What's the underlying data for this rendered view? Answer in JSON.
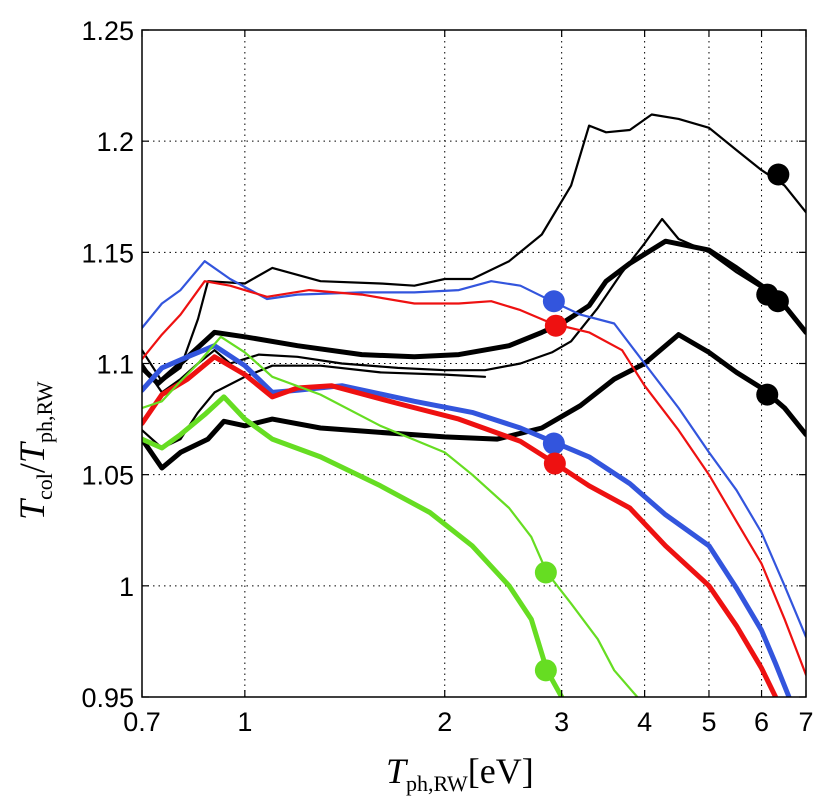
{
  "chart_data": {
    "type": "line",
    "title": "",
    "xlabel": "T_ph,RW [eV]",
    "ylabel": "T_col / T_ph,RW",
    "xlabel_parts": {
      "main": "T",
      "sub": "ph,RW",
      "unit": "[eV]"
    },
    "ylabel_parts": {
      "main": "T",
      "sub1": "col",
      "sep": "/",
      "main2": "T",
      "sub2": "ph,RW"
    },
    "xscale": "log",
    "xlim": [
      0.7,
      7
    ],
    "ylim": [
      0.95,
      1.25
    ],
    "xticks": [
      0.7,
      1,
      2,
      3,
      4,
      5,
      6,
      7
    ],
    "xtick_labels": [
      "0.7",
      "1",
      "2",
      "3",
      "4",
      "5",
      "6",
      "7"
    ],
    "yticks": [
      0.95,
      1.0,
      1.05,
      1.1,
      1.15,
      1.2,
      1.25
    ],
    "ytick_labels": [
      "0.95",
      "1",
      "1.05",
      "1.1",
      "1.15",
      "1.2",
      "1.25"
    ],
    "grid": true,
    "series": [
      {
        "name": "black-thin-top",
        "color": "#000000",
        "width": "thin",
        "points": [
          [
            0.7,
            1.106
          ],
          [
            0.75,
            1.092
          ],
          [
            0.8,
            1.098
          ],
          [
            0.85,
            1.12
          ],
          [
            0.88,
            1.137
          ],
          [
            1.0,
            1.136
          ],
          [
            1.1,
            1.143
          ],
          [
            1.3,
            1.137
          ],
          [
            1.6,
            1.136
          ],
          [
            1.8,
            1.135
          ],
          [
            2.0,
            1.138
          ],
          [
            2.2,
            1.138
          ],
          [
            2.5,
            1.146
          ],
          [
            2.8,
            1.158
          ],
          [
            3.1,
            1.18
          ],
          [
            3.3,
            1.207
          ],
          [
            3.5,
            1.204
          ],
          [
            3.8,
            1.205
          ],
          [
            4.1,
            1.212
          ],
          [
            4.5,
            1.21
          ],
          [
            5.0,
            1.206
          ],
          [
            5.5,
            1.196
          ],
          [
            6.0,
            1.187
          ],
          [
            6.5,
            1.18
          ],
          [
            7.0,
            1.168
          ]
        ],
        "marker": [
          6.36,
          1.185
        ]
      },
      {
        "name": "black-thin-mid",
        "color": "#000000",
        "width": "thin",
        "points": [
          [
            0.7,
            1.1
          ],
          [
            0.75,
            1.087
          ],
          [
            0.8,
            1.093
          ],
          [
            0.85,
            1.1
          ],
          [
            0.9,
            1.106
          ],
          [
            0.95,
            1.1
          ],
          [
            1.05,
            1.104
          ],
          [
            1.2,
            1.103
          ],
          [
            1.4,
            1.1
          ],
          [
            1.7,
            1.098
          ],
          [
            2.0,
            1.097
          ],
          [
            2.3,
            1.097
          ],
          [
            2.6,
            1.1
          ],
          [
            2.9,
            1.105
          ],
          [
            3.1,
            1.11
          ],
          [
            3.4,
            1.125
          ],
          [
            3.7,
            1.141
          ],
          [
            4.0,
            1.154
          ],
          [
            4.25,
            1.165
          ],
          [
            4.5,
            1.156
          ],
          [
            5.0,
            1.15
          ],
          [
            5.5,
            1.141
          ],
          [
            6.0,
            1.134
          ],
          [
            6.5,
            1.125
          ],
          [
            7.0,
            1.114
          ]
        ],
        "marker": [
          6.12,
          1.131
        ]
      },
      {
        "name": "black-thin-low",
        "color": "#000000",
        "width": "thin",
        "points": [
          [
            0.7,
            1.07
          ],
          [
            0.75,
            1.062
          ],
          [
            0.8,
            1.066
          ],
          [
            0.85,
            1.078
          ],
          [
            0.9,
            1.087
          ],
          [
            1.0,
            1.094
          ],
          [
            1.1,
            1.099
          ],
          [
            1.3,
            1.099
          ],
          [
            1.6,
            1.096
          ],
          [
            2.0,
            1.095
          ],
          [
            2.3,
            1.094
          ]
        ]
      },
      {
        "name": "black-thick-top",
        "color": "#000000",
        "width": "thick",
        "points": [
          [
            0.7,
            1.098
          ],
          [
            0.74,
            1.091
          ],
          [
            0.8,
            1.1
          ],
          [
            0.9,
            1.114
          ],
          [
            1.0,
            1.112
          ],
          [
            1.2,
            1.108
          ],
          [
            1.5,
            1.104
          ],
          [
            1.8,
            1.103
          ],
          [
            2.1,
            1.104
          ],
          [
            2.5,
            1.108
          ],
          [
            2.8,
            1.114
          ],
          [
            3.0,
            1.118
          ],
          [
            3.3,
            1.126
          ],
          [
            3.5,
            1.137
          ],
          [
            3.8,
            1.145
          ],
          [
            4.3,
            1.155
          ],
          [
            5.0,
            1.151
          ],
          [
            5.5,
            1.143
          ],
          [
            6.0,
            1.135
          ],
          [
            6.5,
            1.126
          ],
          [
            7.0,
            1.114
          ]
        ],
        "marker": [
          6.35,
          1.128
        ]
      },
      {
        "name": "black-thick-low",
        "color": "#000000",
        "width": "thick",
        "points": [
          [
            0.7,
            1.066
          ],
          [
            0.75,
            1.053
          ],
          [
            0.8,
            1.06
          ],
          [
            0.88,
            1.066
          ],
          [
            0.93,
            1.074
          ],
          [
            1.0,
            1.072
          ],
          [
            1.1,
            1.075
          ],
          [
            1.3,
            1.071
          ],
          [
            1.6,
            1.069
          ],
          [
            2.0,
            1.067
          ],
          [
            2.4,
            1.066
          ],
          [
            2.8,
            1.071
          ],
          [
            3.2,
            1.081
          ],
          [
            3.6,
            1.093
          ],
          [
            4.0,
            1.1
          ],
          [
            4.5,
            1.113
          ],
          [
            5.0,
            1.105
          ],
          [
            5.5,
            1.096
          ],
          [
            6.0,
            1.089
          ],
          [
            6.5,
            1.08
          ],
          [
            7.0,
            1.068
          ]
        ],
        "marker": [
          6.12,
          1.086
        ]
      },
      {
        "name": "blue-thin",
        "color": "#3355dd",
        "width": "thin",
        "points": [
          [
            0.7,
            1.116
          ],
          [
            0.75,
            1.127
          ],
          [
            0.8,
            1.133
          ],
          [
            0.87,
            1.146
          ],
          [
            0.95,
            1.138
          ],
          [
            1.08,
            1.129
          ],
          [
            1.2,
            1.131
          ],
          [
            1.5,
            1.132
          ],
          [
            1.8,
            1.132
          ],
          [
            2.1,
            1.133
          ],
          [
            2.35,
            1.137
          ],
          [
            2.6,
            1.135
          ],
          [
            2.9,
            1.128
          ],
          [
            3.2,
            1.122
          ],
          [
            3.6,
            1.118
          ],
          [
            4.0,
            1.1
          ],
          [
            4.5,
            1.08
          ],
          [
            5.0,
            1.06
          ],
          [
            5.5,
            1.043
          ],
          [
            6.0,
            1.024
          ],
          [
            6.5,
            1.0
          ],
          [
            7.0,
            0.977
          ]
        ],
        "marker": [
          2.92,
          1.128
        ]
      },
      {
        "name": "red-thin",
        "color": "#ee1111",
        "width": "thin",
        "points": [
          [
            0.7,
            1.102
          ],
          [
            0.75,
            1.113
          ],
          [
            0.8,
            1.122
          ],
          [
            0.87,
            1.137
          ],
          [
            0.95,
            1.135
          ],
          [
            1.08,
            1.13
          ],
          [
            1.25,
            1.133
          ],
          [
            1.5,
            1.131
          ],
          [
            1.8,
            1.127
          ],
          [
            2.1,
            1.127
          ],
          [
            2.35,
            1.128
          ],
          [
            2.6,
            1.124
          ],
          [
            2.9,
            1.118
          ],
          [
            3.3,
            1.114
          ],
          [
            3.7,
            1.106
          ],
          [
            4.0,
            1.09
          ],
          [
            4.5,
            1.07
          ],
          [
            5.0,
            1.05
          ],
          [
            5.5,
            1.029
          ],
          [
            6.0,
            1.01
          ],
          [
            6.5,
            0.985
          ],
          [
            7.0,
            0.96
          ]
        ],
        "marker": [
          2.94,
          1.117
        ]
      },
      {
        "name": "blue-thick",
        "color": "#3355dd",
        "width": "thick",
        "points": [
          [
            0.7,
            1.088
          ],
          [
            0.75,
            1.098
          ],
          [
            0.82,
            1.103
          ],
          [
            0.9,
            1.108
          ],
          [
            1.0,
            1.099
          ],
          [
            1.1,
            1.087
          ],
          [
            1.2,
            1.088
          ],
          [
            1.4,
            1.09
          ],
          [
            1.8,
            1.083
          ],
          [
            2.2,
            1.078
          ],
          [
            2.6,
            1.071
          ],
          [
            2.9,
            1.065
          ],
          [
            3.3,
            1.058
          ],
          [
            3.8,
            1.046
          ],
          [
            4.3,
            1.032
          ],
          [
            5.0,
            1.018
          ],
          [
            5.5,
            0.999
          ],
          [
            6.0,
            0.98
          ],
          [
            6.3,
            0.965
          ],
          [
            6.6,
            0.95
          ]
        ],
        "marker": [
          2.92,
          1.064
        ]
      },
      {
        "name": "red-thick",
        "color": "#ee1111",
        "width": "thick",
        "points": [
          [
            0.7,
            1.073
          ],
          [
            0.75,
            1.086
          ],
          [
            0.82,
            1.093
          ],
          [
            0.9,
            1.103
          ],
          [
            1.0,
            1.095
          ],
          [
            1.1,
            1.085
          ],
          [
            1.2,
            1.089
          ],
          [
            1.35,
            1.09
          ],
          [
            1.7,
            1.082
          ],
          [
            2.1,
            1.075
          ],
          [
            2.6,
            1.065
          ],
          [
            2.9,
            1.056
          ],
          [
            3.3,
            1.045
          ],
          [
            3.8,
            1.035
          ],
          [
            4.3,
            1.018
          ],
          [
            5.0,
            1.0
          ],
          [
            5.5,
            0.982
          ],
          [
            6.0,
            0.963
          ],
          [
            6.3,
            0.95
          ]
        ],
        "marker": [
          2.93,
          1.055
        ]
      },
      {
        "name": "green-thin",
        "color": "#66dd22",
        "width": "thin",
        "points": [
          [
            0.7,
            1.08
          ],
          [
            0.75,
            1.083
          ],
          [
            0.8,
            1.092
          ],
          [
            0.85,
            1.1
          ],
          [
            0.92,
            1.112
          ],
          [
            1.0,
            1.105
          ],
          [
            1.1,
            1.094
          ],
          [
            1.3,
            1.086
          ],
          [
            1.6,
            1.072
          ],
          [
            2.0,
            1.06
          ],
          [
            2.2,
            1.05
          ],
          [
            2.5,
            1.035
          ],
          [
            2.7,
            1.022
          ],
          [
            2.85,
            1.006
          ],
          [
            3.1,
            0.992
          ],
          [
            3.4,
            0.976
          ],
          [
            3.6,
            0.962
          ],
          [
            3.9,
            0.95
          ]
        ],
        "marker": [
          2.84,
          1.006
        ]
      },
      {
        "name": "green-thick",
        "color": "#66dd22",
        "width": "thick",
        "points": [
          [
            0.7,
            1.066
          ],
          [
            0.75,
            1.062
          ],
          [
            0.8,
            1.068
          ],
          [
            0.87,
            1.077
          ],
          [
            0.93,
            1.085
          ],
          [
            1.0,
            1.075
          ],
          [
            1.1,
            1.066
          ],
          [
            1.3,
            1.058
          ],
          [
            1.6,
            1.045
          ],
          [
            1.9,
            1.033
          ],
          [
            2.2,
            1.018
          ],
          [
            2.5,
            1.0
          ],
          [
            2.7,
            0.985
          ],
          [
            2.85,
            0.962
          ],
          [
            3.0,
            0.95
          ]
        ],
        "marker": [
          2.84,
          0.962
        ]
      }
    ]
  }
}
